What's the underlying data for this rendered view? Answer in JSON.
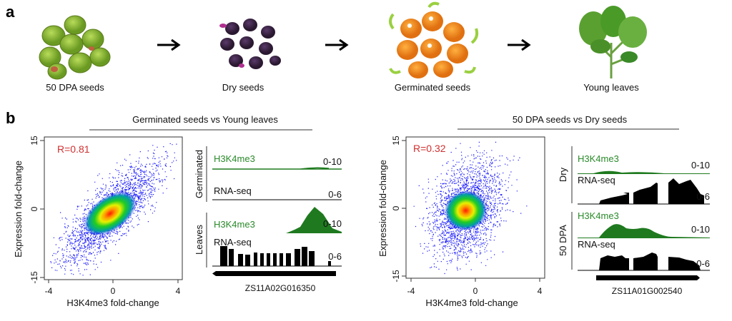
{
  "panel_a": {
    "label": "a",
    "stages": [
      "50 DPA seeds",
      "Dry seeds",
      "Germinated seeds",
      "Young leaves"
    ]
  },
  "panel_b": {
    "label": "b",
    "left": {
      "title": "Germinated seeds vs Young leaves",
      "scatter": {
        "r_label": "R=0.81",
        "r": 0.81,
        "xlabel": "H3K4me3 fold-change",
        "ylabel": "Expression fold-change",
        "xticks": [
          "-4",
          "0",
          "4"
        ],
        "yticks": [
          "15",
          "0",
          "-15"
        ],
        "xlim": [
          -4,
          4
        ],
        "ylim": [
          -15,
          15
        ]
      },
      "tracks": {
        "groups": [
          {
            "name": "Germinated",
            "h3k4me3": "H3K4me3",
            "h3k4me3_range": "0-10",
            "rnaseq": "RNA-seq",
            "rnaseq_range": "0-6"
          },
          {
            "name": "Leaves",
            "h3k4me3": "H3K4me3",
            "h3k4me3_range": "0-10",
            "rnaseq": "RNA-seq",
            "rnaseq_range": "0-6"
          }
        ],
        "gene": "ZS11A02G016350"
      }
    },
    "right": {
      "title": "50 DPA seeds vs Dry seeds",
      "scatter": {
        "r_label": "R=0.32",
        "r": 0.32,
        "xlabel": "H3K4me3 fold-change",
        "ylabel": "Expression fold-change",
        "xticks": [
          "-4",
          "0",
          "4"
        ],
        "yticks": [
          "15",
          "0",
          "-15"
        ],
        "xlim": [
          -4,
          4
        ],
        "ylim": [
          -15,
          15
        ]
      },
      "tracks": {
        "groups": [
          {
            "name": "Dry",
            "h3k4me3": "H3K4me3",
            "h3k4me3_range": "0-10",
            "rnaseq": "RNA-seq",
            "rnaseq_range": "0-6"
          },
          {
            "name": "50 DPA",
            "h3k4me3": "H3K4me3",
            "h3k4me3_range": "0-10",
            "rnaseq": "RNA-seq",
            "rnaseq_range": "0-6"
          }
        ],
        "gene": "ZS11A01G002540"
      }
    }
  },
  "colors": {
    "h3k4me3": "#1f7a1f",
    "rnaseq": "#000000",
    "r_label": "#d03030",
    "points": "#1a1aff"
  }
}
